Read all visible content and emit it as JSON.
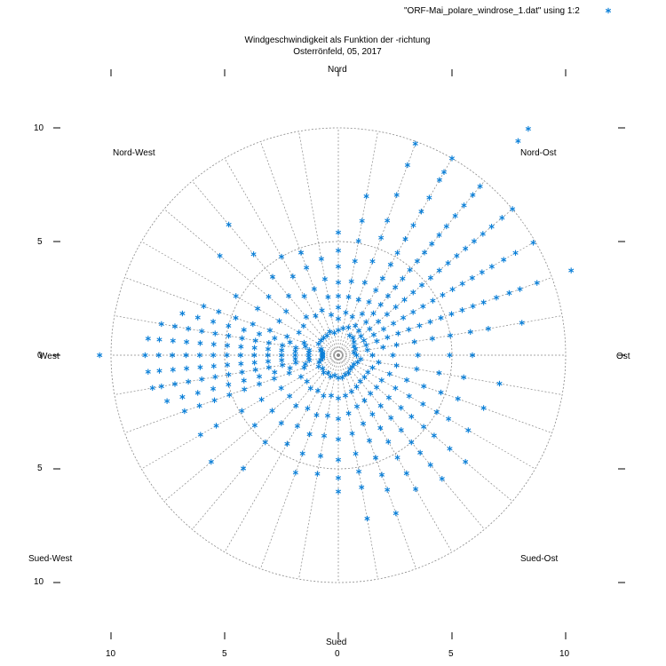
{
  "chart_data": {
    "type": "scatter",
    "projection": "polar",
    "title": "Windgeschwindigkeit als Funktion der -richtung",
    "subtitle": "Osterrönfeld, 05, 2017",
    "legend": {
      "label": "\"ORF-Mai_polare_windrose_1.dat\" using 1:2",
      "marker": "*",
      "placement": "top-right"
    },
    "series_color": "#0a7fd8",
    "grid_color": "#888888",
    "r_max": 10,
    "r_rings": [
      5,
      10
    ],
    "direction_labels": {
      "north": "Nord",
      "northeast": "Nord-Ost",
      "east": "Ost",
      "southeast": "Sued-Ost",
      "south": "Sued",
      "southwest": "Sued-West",
      "west": "West",
      "northwest": "Nord-West"
    },
    "x_ticks": [
      "10",
      "5",
      "0",
      "5",
      "10"
    ],
    "y_ticks": [
      "10",
      "5",
      "0",
      "5",
      "10"
    ],
    "x_range": [
      -10,
      10
    ],
    "y_range": [
      -10,
      10
    ],
    "angle_step_deg": 10,
    "points_angle_r": [
      [
        0,
        1.1
      ],
      [
        0,
        1.6
      ],
      [
        0,
        2.1
      ],
      [
        0,
        2.6
      ],
      [
        0,
        3.2
      ],
      [
        0,
        3.9
      ],
      [
        0,
        4.6
      ],
      [
        0,
        5.4
      ],
      [
        10,
        1.2
      ],
      [
        10,
        1.9
      ],
      [
        10,
        2.6
      ],
      [
        10,
        3.3
      ],
      [
        10,
        4.2
      ],
      [
        10,
        5.1
      ],
      [
        10,
        6.0
      ],
      [
        10,
        7.1
      ],
      [
        20,
        1.3
      ],
      [
        20,
        1.8
      ],
      [
        20,
        2.6
      ],
      [
        20,
        3.4
      ],
      [
        20,
        4.4
      ],
      [
        20,
        5.5
      ],
      [
        20,
        6.3
      ],
      [
        20,
        7.5
      ],
      [
        20,
        8.9
      ],
      [
        20,
        9.9
      ],
      [
        30,
        1.0
      ],
      [
        30,
        1.5
      ],
      [
        30,
        2.1
      ],
      [
        30,
        2.7
      ],
      [
        30,
        3.3
      ],
      [
        30,
        3.9
      ],
      [
        30,
        4.6
      ],
      [
        30,
        5.2
      ],
      [
        30,
        5.9
      ],
      [
        30,
        6.6
      ],
      [
        30,
        7.3
      ],
      [
        30,
        8.0
      ],
      [
        30,
        8.9
      ],
      [
        30,
        9.3
      ],
      [
        30,
        10.0
      ],
      [
        40,
        1.0
      ],
      [
        40,
        1.4
      ],
      [
        40,
        1.9
      ],
      [
        40,
        2.4
      ],
      [
        40,
        2.9
      ],
      [
        40,
        3.4
      ],
      [
        40,
        3.9
      ],
      [
        40,
        4.4
      ],
      [
        40,
        4.9
      ],
      [
        40,
        5.4
      ],
      [
        40,
        5.9
      ],
      [
        40,
        6.4
      ],
      [
        40,
        6.9
      ],
      [
        40,
        7.4
      ],
      [
        40,
        8.0
      ],
      [
        40,
        8.6
      ],
      [
        40,
        9.2
      ],
      [
        40,
        9.7
      ],
      [
        40,
        12.3
      ],
      [
        40,
        13.0
      ],
      [
        50,
        0.9
      ],
      [
        50,
        1.3
      ],
      [
        50,
        1.8
      ],
      [
        50,
        2.3
      ],
      [
        50,
        2.8
      ],
      [
        50,
        3.3
      ],
      [
        50,
        3.8
      ],
      [
        50,
        4.3
      ],
      [
        50,
        4.8
      ],
      [
        50,
        5.3
      ],
      [
        50,
        5.8
      ],
      [
        50,
        6.3
      ],
      [
        50,
        6.8
      ],
      [
        50,
        7.3
      ],
      [
        50,
        7.8
      ],
      [
        50,
        8.3
      ],
      [
        50,
        8.8
      ],
      [
        50,
        9.4
      ],
      [
        50,
        10.0
      ],
      [
        60,
        0.8
      ],
      [
        60,
        1.3
      ],
      [
        60,
        1.8
      ],
      [
        60,
        2.3
      ],
      [
        60,
        2.8
      ],
      [
        60,
        3.3
      ],
      [
        60,
        3.8
      ],
      [
        60,
        4.3
      ],
      [
        60,
        4.8
      ],
      [
        60,
        5.3
      ],
      [
        60,
        5.8
      ],
      [
        60,
        6.3
      ],
      [
        60,
        6.8
      ],
      [
        60,
        7.3
      ],
      [
        60,
        7.8
      ],
      [
        60,
        8.4
      ],
      [
        60,
        9.0
      ],
      [
        60,
        9.9
      ],
      [
        70,
        0.8
      ],
      [
        70,
        1.3
      ],
      [
        70,
        1.8
      ],
      [
        70,
        2.3
      ],
      [
        70,
        2.8
      ],
      [
        70,
        3.3
      ],
      [
        70,
        3.8
      ],
      [
        70,
        4.3
      ],
      [
        70,
        4.8
      ],
      [
        70,
        5.3
      ],
      [
        70,
        5.8
      ],
      [
        70,
        6.3
      ],
      [
        70,
        6.8
      ],
      [
        70,
        7.4
      ],
      [
        70,
        8.0
      ],
      [
        70,
        8.5
      ],
      [
        70,
        9.3
      ],
      [
        70,
        10.9
      ],
      [
        80,
        0.7
      ],
      [
        80,
        1.3
      ],
      [
        80,
        2.0
      ],
      [
        80,
        2.6
      ],
      [
        80,
        3.4
      ],
      [
        80,
        4.2
      ],
      [
        80,
        5.0
      ],
      [
        80,
        5.9
      ],
      [
        80,
        6.7
      ],
      [
        80,
        8.2
      ],
      [
        90,
        0.8
      ],
      [
        90,
        1.5
      ],
      [
        90,
        2.4
      ],
      [
        90,
        3.5
      ],
      [
        90,
        4.9
      ],
      [
        90,
        5.9
      ],
      [
        100,
        1.0
      ],
      [
        100,
        1.8
      ],
      [
        100,
        2.6
      ],
      [
        100,
        3.5
      ],
      [
        100,
        4.5
      ],
      [
        100,
        5.6
      ],
      [
        100,
        7.2
      ],
      [
        110,
        0.9
      ],
      [
        110,
        1.6
      ],
      [
        110,
        2.4
      ],
      [
        110,
        3.2
      ],
      [
        110,
        4.0
      ],
      [
        110,
        4.8
      ],
      [
        110,
        5.6
      ],
      [
        110,
        6.8
      ],
      [
        120,
        0.8
      ],
      [
        120,
        1.5
      ],
      [
        120,
        2.2
      ],
      [
        120,
        2.9
      ],
      [
        120,
        3.6
      ],
      [
        120,
        4.3
      ],
      [
        120,
        5.0
      ],
      [
        120,
        5.6
      ],
      [
        120,
        6.6
      ],
      [
        130,
        0.8
      ],
      [
        130,
        1.5
      ],
      [
        130,
        2.2
      ],
      [
        130,
        2.9
      ],
      [
        130,
        3.6
      ],
      [
        130,
        4.2
      ],
      [
        130,
        4.9
      ],
      [
        130,
        5.5
      ],
      [
        130,
        6.4
      ],
      [
        130,
        7.3
      ],
      [
        140,
        0.8
      ],
      [
        140,
        1.5
      ],
      [
        140,
        2.2
      ],
      [
        140,
        2.9
      ],
      [
        140,
        3.6
      ],
      [
        140,
        4.3
      ],
      [
        140,
        5.0
      ],
      [
        140,
        5.6
      ],
      [
        140,
        6.3
      ],
      [
        140,
        7.1
      ],
      [
        150,
        0.9
      ],
      [
        150,
        1.6
      ],
      [
        150,
        2.3
      ],
      [
        150,
        3.0
      ],
      [
        150,
        3.7
      ],
      [
        150,
        4.4
      ],
      [
        150,
        5.2
      ],
      [
        150,
        6.0
      ],
      [
        150,
        6.8
      ],
      [
        160,
        0.9
      ],
      [
        160,
        1.7
      ],
      [
        160,
        2.4
      ],
      [
        160,
        3.2
      ],
      [
        160,
        4.0
      ],
      [
        160,
        4.8
      ],
      [
        160,
        5.6
      ],
      [
        160,
        6.3
      ],
      [
        160,
        7.4
      ],
      [
        170,
        1.0
      ],
      [
        170,
        1.8
      ],
      [
        170,
        2.6
      ],
      [
        170,
        3.5
      ],
      [
        170,
        4.4
      ],
      [
        170,
        5.2
      ],
      [
        170,
        5.9
      ],
      [
        170,
        7.3
      ],
      [
        180,
        1.0
      ],
      [
        180,
        1.9
      ],
      [
        180,
        2.8
      ],
      [
        180,
        3.7
      ],
      [
        180,
        4.6
      ],
      [
        180,
        5.4
      ],
      [
        180,
        6.0
      ],
      [
        190,
        0.9
      ],
      [
        190,
        1.8
      ],
      [
        190,
        2.7
      ],
      [
        190,
        3.6
      ],
      [
        190,
        4.5
      ],
      [
        190,
        5.3
      ],
      [
        200,
        1.0
      ],
      [
        200,
        1.9
      ],
      [
        200,
        2.8
      ],
      [
        200,
        3.7
      ],
      [
        200,
        4.6
      ],
      [
        200,
        5.5
      ],
      [
        210,
        0.9
      ],
      [
        210,
        1.8
      ],
      [
        210,
        2.7
      ],
      [
        210,
        3.6
      ],
      [
        210,
        4.5
      ],
      [
        220,
        1.0
      ],
      [
        220,
        1.9
      ],
      [
        220,
        2.9
      ],
      [
        220,
        3.9
      ],
      [
        220,
        5.0
      ],
      [
        220,
        6.5
      ],
      [
        230,
        0.9
      ],
      [
        230,
        1.8
      ],
      [
        230,
        2.8
      ],
      [
        230,
        3.8
      ],
      [
        230,
        4.8
      ],
      [
        230,
        7.3
      ],
      [
        240,
        1.0
      ],
      [
        240,
        1.9
      ],
      [
        240,
        2.9
      ],
      [
        240,
        3.9
      ],
      [
        240,
        4.9
      ],
      [
        240,
        6.2
      ],
      [
        240,
        7.0
      ],
      [
        250,
        0.9
      ],
      [
        250,
        1.6
      ],
      [
        250,
        2.3
      ],
      [
        250,
        3.0
      ],
      [
        250,
        3.7
      ],
      [
        250,
        4.4
      ],
      [
        250,
        5.1
      ],
      [
        250,
        5.8
      ],
      [
        250,
        6.5
      ],
      [
        250,
        7.2
      ],
      [
        255,
        0.8
      ],
      [
        255,
        1.5
      ],
      [
        255,
        2.2
      ],
      [
        255,
        2.9
      ],
      [
        255,
        3.6
      ],
      [
        255,
        4.3
      ],
      [
        255,
        5.0
      ],
      [
        255,
        5.7
      ],
      [
        255,
        6.4
      ],
      [
        255,
        7.1
      ],
      [
        255,
        7.8
      ],
      [
        260,
        0.7
      ],
      [
        260,
        1.3
      ],
      [
        260,
        1.9
      ],
      [
        260,
        2.5
      ],
      [
        260,
        3.1
      ],
      [
        260,
        3.7
      ],
      [
        260,
        4.3
      ],
      [
        260,
        4.9
      ],
      [
        260,
        5.5
      ],
      [
        260,
        6.1
      ],
      [
        260,
        6.7
      ],
      [
        260,
        7.3
      ],
      [
        260,
        7.9
      ],
      [
        260,
        8.3
      ],
      [
        265,
        0.7
      ],
      [
        265,
        1.3
      ],
      [
        265,
        1.9
      ],
      [
        265,
        2.5
      ],
      [
        265,
        3.1
      ],
      [
        265,
        3.7
      ],
      [
        265,
        4.3
      ],
      [
        265,
        4.9
      ],
      [
        265,
        5.5
      ],
      [
        265,
        6.1
      ],
      [
        265,
        6.7
      ],
      [
        265,
        7.3
      ],
      [
        265,
        7.9
      ],
      [
        265,
        8.4
      ],
      [
        270,
        0.7
      ],
      [
        270,
        1.3
      ],
      [
        270,
        1.9
      ],
      [
        270,
        2.5
      ],
      [
        270,
        3.1
      ],
      [
        270,
        3.7
      ],
      [
        270,
        4.3
      ],
      [
        270,
        4.9
      ],
      [
        270,
        5.5
      ],
      [
        270,
        6.1
      ],
      [
        270,
        6.7
      ],
      [
        270,
        7.3
      ],
      [
        270,
        7.9
      ],
      [
        270,
        8.5
      ],
      [
        270,
        10.5
      ],
      [
        275,
        0.7
      ],
      [
        275,
        1.3
      ],
      [
        275,
        1.9
      ],
      [
        275,
        2.5
      ],
      [
        275,
        3.1
      ],
      [
        275,
        3.7
      ],
      [
        275,
        4.3
      ],
      [
        275,
        4.9
      ],
      [
        275,
        5.5
      ],
      [
        275,
        6.1
      ],
      [
        275,
        6.7
      ],
      [
        275,
        7.3
      ],
      [
        275,
        7.9
      ],
      [
        275,
        8.4
      ],
      [
        280,
        0.7
      ],
      [
        280,
        1.3
      ],
      [
        280,
        1.9
      ],
      [
        280,
        2.5
      ],
      [
        280,
        3.1
      ],
      [
        280,
        3.7
      ],
      [
        280,
        4.3
      ],
      [
        280,
        4.9
      ],
      [
        280,
        5.5
      ],
      [
        280,
        6.1
      ],
      [
        280,
        6.7
      ],
      [
        280,
        7.3
      ],
      [
        280,
        7.9
      ],
      [
        285,
        0.8
      ],
      [
        285,
        1.5
      ],
      [
        285,
        2.2
      ],
      [
        285,
        2.9
      ],
      [
        285,
        3.6
      ],
      [
        285,
        4.3
      ],
      [
        285,
        5.0
      ],
      [
        285,
        5.7
      ],
      [
        285,
        6.4
      ],
      [
        285,
        7.1
      ],
      [
        290,
        0.8
      ],
      [
        290,
        1.6
      ],
      [
        290,
        2.4
      ],
      [
        290,
        3.2
      ],
      [
        290,
        4.0
      ],
      [
        290,
        4.8
      ],
      [
        290,
        5.6
      ],
      [
        290,
        6.3
      ],
      [
        300,
        1.0
      ],
      [
        300,
        2.0
      ],
      [
        300,
        3.0
      ],
      [
        300,
        4.1
      ],
      [
        300,
        5.2
      ],
      [
        310,
        1.0
      ],
      [
        310,
        2.0
      ],
      [
        310,
        3.0
      ],
      [
        310,
        4.0
      ],
      [
        310,
        6.8
      ],
      [
        320,
        1.0
      ],
      [
        320,
        2.2
      ],
      [
        320,
        3.4
      ],
      [
        320,
        4.5
      ],
      [
        320,
        5.8
      ],
      [
        320,
        7.5
      ],
      [
        330,
        1.0
      ],
      [
        330,
        2.0
      ],
      [
        330,
        3.0
      ],
      [
        330,
        4.0
      ],
      [
        330,
        5.0
      ],
      [
        340,
        1.1
      ],
      [
        340,
        2.1
      ],
      [
        340,
        3.1
      ],
      [
        340,
        4.1
      ],
      [
        340,
        4.8
      ],
      [
        350,
        1.0
      ],
      [
        350,
        1.8
      ],
      [
        350,
        2.6
      ],
      [
        350,
        3.4
      ],
      [
        350,
        4.3
      ]
    ]
  }
}
